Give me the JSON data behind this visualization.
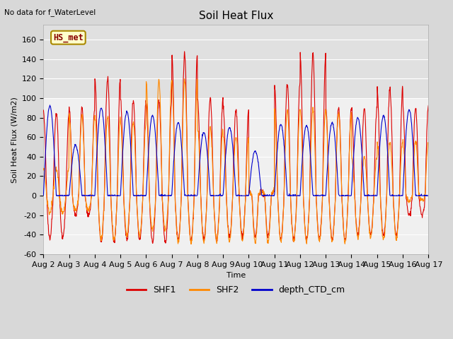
{
  "title": "Soil Heat Flux",
  "ylabel": "Soil Heat Flux (W/m2)",
  "xlabel": "Time",
  "no_data_text": "No data for f_WaterLevel",
  "legend_label_text": "HS_met",
  "ylim": [
    -60,
    175
  ],
  "yticks": [
    -60,
    -40,
    -20,
    0,
    20,
    40,
    60,
    80,
    100,
    120,
    140,
    160
  ],
  "xtick_labels": [
    "Aug 2",
    "Aug 3",
    "Aug 4",
    "Aug 5",
    "Aug 6",
    "Aug 7",
    "Aug 8",
    "Aug 9",
    "Aug 10",
    "Aug 11",
    "Aug 12",
    "Aug 13",
    "Aug 14",
    "Aug 15",
    "Aug 16",
    "Aug 17"
  ],
  "plot_bg_color": "#f0f0f0",
  "fig_bg_color": "#d8d8d8",
  "shf1_color": "#dd0000",
  "shf2_color": "#ff8800",
  "depth_color": "#0000cc",
  "shf_band_color": "#e0e0e0",
  "grid_color": "#ffffff",
  "n_days": 15,
  "pts_per_day": 96,
  "shf1_peaks": [
    85,
    90,
    120,
    98,
    97,
    145,
    100,
    88,
    5,
    115,
    145,
    90,
    90,
    110,
    90
  ],
  "shf1_troughs": [
    -44,
    -20,
    -48,
    -45,
    -48,
    -45,
    -45,
    -42,
    -42,
    -45,
    -45,
    -45,
    -40,
    -40,
    -20
  ],
  "shf2_peaks": [
    28,
    82,
    82,
    75,
    118,
    120,
    70,
    60,
    5,
    88,
    88,
    85,
    40,
    55,
    55
  ],
  "shf2_troughs": [
    -18,
    -15,
    -45,
    -40,
    -35,
    -48,
    -47,
    -47,
    -47,
    -47,
    -47,
    -47,
    -43,
    -45,
    -5
  ],
  "depth_peaks": [
    92,
    52,
    90,
    86,
    82,
    75,
    65,
    70,
    46,
    73,
    72,
    75,
    80,
    82,
    88
  ],
  "legend_fontsize": 9,
  "title_fontsize": 11,
  "label_fontsize": 8,
  "tick_fontsize": 8
}
